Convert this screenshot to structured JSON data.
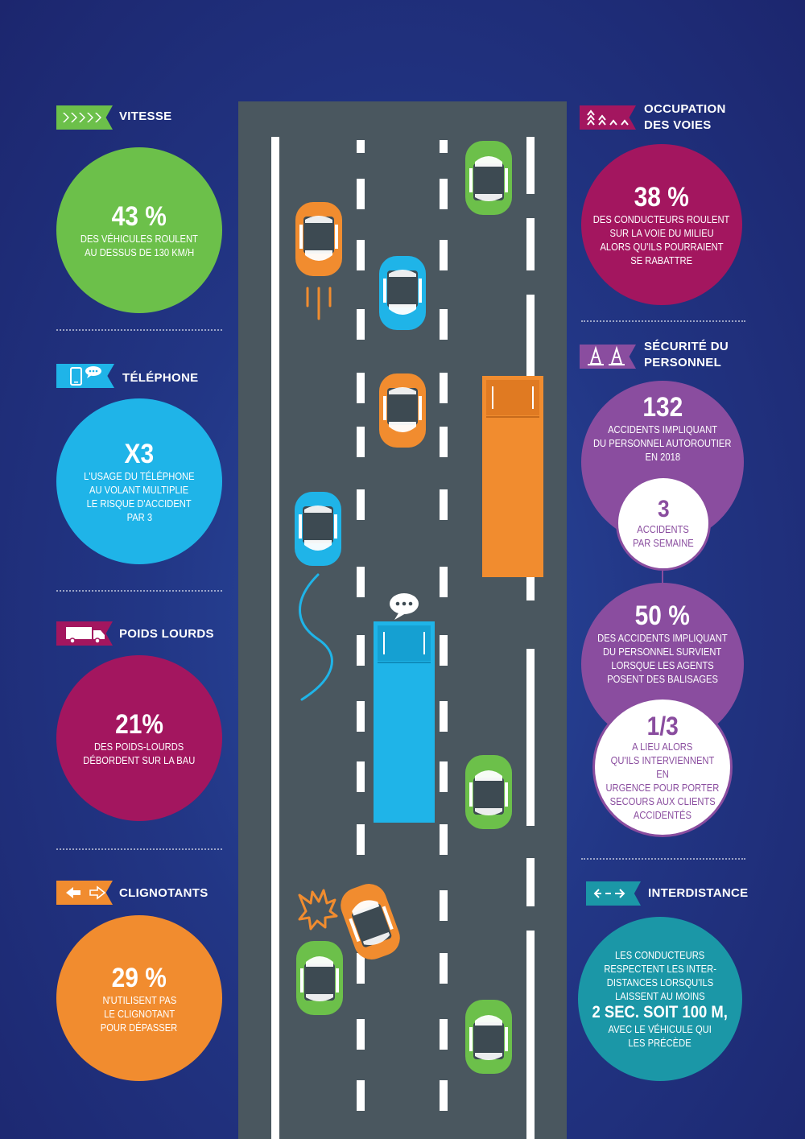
{
  "colors": {
    "green": "#6cc04a",
    "cyan": "#1fb4e8",
    "magenta": "#a3165f",
    "orange": "#f18c2f",
    "purple": "#8a4d9f",
    "teal": "#1b97a7",
    "road": "#4a575f"
  },
  "left": {
    "vitesse": {
      "icon": "fast-forward-arrows-icon",
      "title": "VITESSE",
      "value": "43 %",
      "text": [
        "DES VÉHICULES ROULENT",
        "AU DESSUS DE 130 KM/H"
      ]
    },
    "telephone": {
      "icon": "phone-chat-icon",
      "title": "TÉLÉPHONE",
      "value": "X3",
      "text": [
        "L'USAGE DU TÉLÉPHONE",
        "AU VOLANT MULTIPLIE",
        "LE RISQUE D'ACCIDENT",
        "PAR 3"
      ]
    },
    "poids": {
      "icon": "truck-icon",
      "title": "POIDS LOURDS",
      "value": "21%",
      "text": [
        "DES POIDS-LOURDS",
        "DÉBORDENT SUR LA BAU"
      ]
    },
    "clignotants": {
      "icon": "turn-signal-arrows-icon",
      "title": "CLIGNOTANTS",
      "value": "29 %",
      "text": [
        "N'UTILISENT PAS",
        "LE CLIGNOTANT",
        "POUR DÉPASSER"
      ]
    }
  },
  "right": {
    "occupation": {
      "icon": "lane-arrows-icon",
      "title": [
        "OCCUPATION",
        "DES VOIES"
      ],
      "value": "38 %",
      "text": [
        "DES CONDUCTEURS ROULENT",
        "SUR LA VOIE DU MILIEU",
        "ALORS QU'ILS POURRAIENT",
        "SE RABATTRE"
      ]
    },
    "securite": {
      "icon": "traffic-cones-icon",
      "title": [
        "SÉCURITÉ DU",
        "PERSONNEL"
      ],
      "value": "132",
      "text": [
        "ACCIDENTS IMPLIQUANT",
        "DU PERSONNEL AUTOROUTIER",
        "EN 2018"
      ],
      "sub_value": "3",
      "sub_text": [
        "ACCIDENTS",
        "PAR SEMAINE"
      ],
      "value2": "50 %",
      "text2": [
        "DES ACCIDENTS IMPLIQUANT",
        "DU PERSONNEL SURVIENT",
        "LORSQUE LES AGENTS",
        "POSENT DES BALISAGES"
      ],
      "sub_value2": "1/3",
      "sub_text2": [
        "A LIEU ALORS",
        "QU'ILS INTERVIENNENT EN",
        "URGENCE POUR PORTER",
        "SECOURS AUX CLIENTS",
        "ACCIDENTÉS"
      ]
    },
    "interdistance": {
      "icon": "distance-arrows-icon",
      "title": "INTERDISTANCE",
      "text": [
        "LES CONDUCTEURS",
        "RESPECTENT LES INTER-",
        "DISTANCES LORSQU'ILS",
        "LAISSENT AU MOINS"
      ],
      "highlight": "2 SEC. SOIT 100 M,",
      "text_after": [
        "AVEC LE VÉHICULE QUI",
        "LES PRÉCÈDE"
      ]
    }
  }
}
